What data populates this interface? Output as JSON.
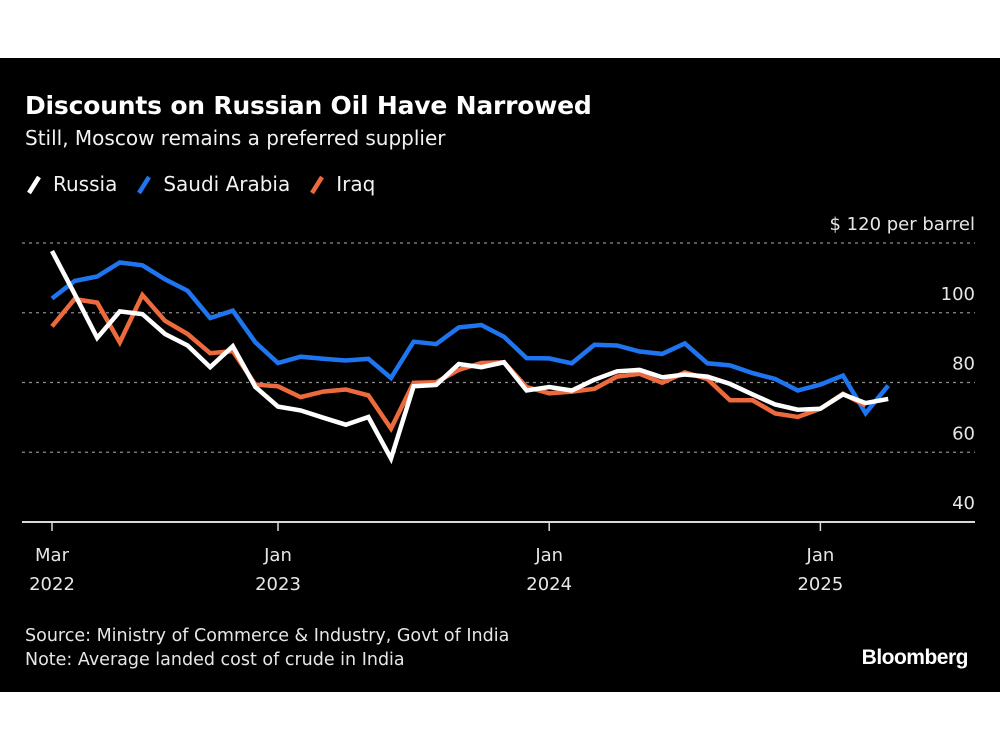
{
  "header": {
    "title": "Discounts on Russian Oil Have Narrowed",
    "subtitle": "Still, Moscow remains a preferred supplier"
  },
  "legend": [
    {
      "label": "Russia",
      "color": "#ffffff"
    },
    {
      "label": "Saudi Arabia",
      "color": "#1f75f0"
    },
    {
      "label": "Iraq",
      "color": "#ec6a3e"
    }
  ],
  "footer": {
    "source": "Source: Ministry of Commerce & Industry, Govt of India",
    "note": "Note: Average landed cost of crude in India",
    "brand": "Bloomberg"
  },
  "chart_data": {
    "type": "line",
    "title": "Discounts on Russian Oil Have Narrowed",
    "subtitle": "Still, Moscow remains a preferred supplier",
    "xlabel": "",
    "ylabel": "$ per barrel",
    "y_unit_label": "$ 120 per barrel",
    "ylim": [
      40,
      120
    ],
    "yticks": [
      40,
      60,
      80,
      100,
      120
    ],
    "ytick_labels": [
      "40",
      "60",
      "80",
      "100",
      "$ 120 per barrel"
    ],
    "grid": true,
    "legend_position": "top-left",
    "x_start": "2022-03",
    "x_frequency": "monthly",
    "xticks": [
      {
        "month_index": 0,
        "line1": "Mar",
        "line2": "2022"
      },
      {
        "month_index": 10,
        "line1": "Jan",
        "line2": "2023"
      },
      {
        "month_index": 22,
        "line1": "Jan",
        "line2": "2024"
      },
      {
        "month_index": 34,
        "line1": "Jan",
        "line2": "2025"
      }
    ],
    "series": [
      {
        "name": "Saudi Arabia",
        "color": "#1f75f0",
        "values": [
          104.1,
          109.1,
          110.4,
          114.4,
          113.6,
          109.6,
          106.3,
          98.5,
          100.6,
          91.5,
          85.6,
          87.4,
          86.8,
          86.3,
          86.8,
          81.3,
          91.7,
          91.0,
          95.8,
          96.5,
          93.1,
          87.0,
          86.9,
          85.5,
          90.8,
          90.6,
          88.9,
          88.2,
          91.2,
          85.5,
          84.9,
          82.7,
          81.0,
          77.7,
          79.4,
          82.0,
          71.2,
          79.1
        ]
      },
      {
        "name": "Iraq",
        "color": "#ec6a3e",
        "values": [
          96.1,
          103.9,
          102.9,
          91.5,
          105.1,
          97.7,
          93.9,
          88.4,
          89.0,
          79.4,
          78.9,
          75.8,
          77.4,
          78.0,
          76.3,
          66.8,
          79.9,
          80.1,
          83.6,
          85.6,
          85.8,
          78.7,
          76.9,
          77.4,
          78.2,
          81.7,
          82.5,
          79.9,
          82.9,
          81.0,
          74.9,
          74.9,
          71.1,
          70.1,
          72.5,
          76.8,
          73.4
        ]
      },
      {
        "name": "Russia",
        "color": "#ffffff",
        "values": [
          117.7,
          105.4,
          92.8,
          100.4,
          99.6,
          93.9,
          90.6,
          84.4,
          90.4,
          78.7,
          73.1,
          72.0,
          69.9,
          67.9,
          70.1,
          58.2,
          78.9,
          79.3,
          85.3,
          84.4,
          85.8,
          77.7,
          78.7,
          77.7,
          80.8,
          83.2,
          83.6,
          81.5,
          82.3,
          81.7,
          79.6,
          76.6,
          73.7,
          72.2,
          72.5,
          76.6,
          74.1,
          75.3
        ]
      }
    ]
  }
}
